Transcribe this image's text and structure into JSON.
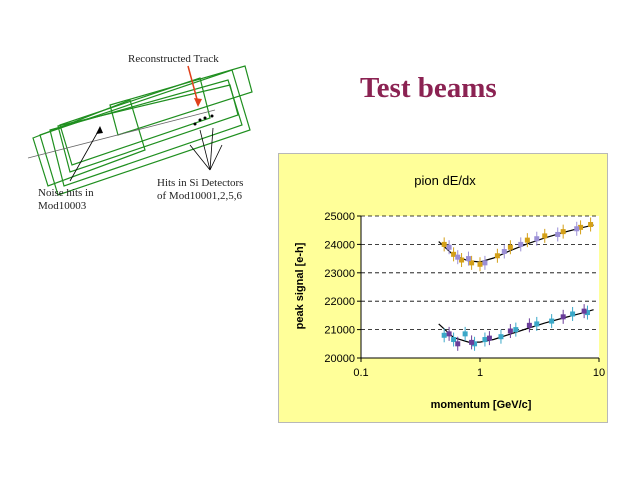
{
  "slide": {
    "title": "Test beams"
  },
  "diagram": {
    "label_reconstructed": "Reconstructed Track",
    "label_noise_1": "Noise hits in",
    "label_noise_2": "Mod10003",
    "label_hits_1": "Hits in Si Detectors",
    "label_hits_2": "of Mod10001,2,5,6",
    "colors": {
      "modules": "#1f8f1f",
      "track": "#e0401a",
      "text": "#222222"
    }
  },
  "chart_data": {
    "type": "scatter",
    "title": "pion dE/dx",
    "xlabel": "momentum [GeV/c]",
    "ylabel": "peak signal [e-h]",
    "xscale": "log",
    "xlim": [
      0.1,
      10
    ],
    "ylim": [
      20000,
      25000
    ],
    "xticks": [
      "0.1",
      "1",
      "10"
    ],
    "yticks": [
      "20000",
      "21000",
      "22000",
      "23000",
      "24000",
      "25000"
    ],
    "grid": "horizontal dashed",
    "background": "#ffff99",
    "series": [
      {
        "color": "#d4a017",
        "points": [
          [
            0.5,
            24000
          ],
          [
            0.6,
            23650
          ],
          [
            0.7,
            23450
          ],
          [
            0.85,
            23350
          ],
          [
            1.0,
            23300
          ],
          [
            1.4,
            23600
          ],
          [
            1.8,
            23900
          ],
          [
            2.5,
            24150
          ],
          [
            3.5,
            24300
          ],
          [
            5.0,
            24450
          ],
          [
            7.0,
            24600
          ],
          [
            8.5,
            24700
          ]
        ]
      },
      {
        "color": "#9b8fd6",
        "points": [
          [
            0.55,
            23900
          ],
          [
            0.65,
            23550
          ],
          [
            0.8,
            23500
          ],
          [
            1.1,
            23350
          ],
          [
            1.6,
            23750
          ],
          [
            2.2,
            24000
          ],
          [
            3.0,
            24200
          ],
          [
            4.5,
            24350
          ],
          [
            6.5,
            24550
          ]
        ]
      },
      {
        "color": "#3aa8c8",
        "points": [
          [
            0.5,
            20800
          ],
          [
            0.6,
            20650
          ],
          [
            0.75,
            20850
          ],
          [
            0.9,
            20500
          ],
          [
            1.1,
            20650
          ],
          [
            1.5,
            20750
          ],
          [
            2.0,
            21000
          ],
          [
            3.0,
            21200
          ],
          [
            4.0,
            21300
          ],
          [
            6.0,
            21550
          ],
          [
            8.0,
            21600
          ]
        ]
      },
      {
        "color": "#6a3d9a",
        "points": [
          [
            0.55,
            20850
          ],
          [
            0.65,
            20500
          ],
          [
            0.85,
            20550
          ],
          [
            1.2,
            20700
          ],
          [
            1.8,
            20950
          ],
          [
            2.6,
            21150
          ],
          [
            5.0,
            21450
          ],
          [
            7.5,
            21650
          ]
        ]
      }
    ],
    "fits": [
      {
        "color": "#000000",
        "points": [
          [
            0.45,
            24100
          ],
          [
            0.6,
            23620
          ],
          [
            0.8,
            23420
          ],
          [
            1.0,
            23380
          ],
          [
            1.3,
            23520
          ],
          [
            1.8,
            23780
          ],
          [
            2.5,
            24020
          ],
          [
            3.5,
            24230
          ],
          [
            5.0,
            24420
          ],
          [
            7.0,
            24580
          ],
          [
            9.0,
            24680
          ]
        ]
      },
      {
        "color": "#000000",
        "points": [
          [
            0.45,
            21200
          ],
          [
            0.6,
            20720
          ],
          [
            0.8,
            20560
          ],
          [
            1.0,
            20560
          ],
          [
            1.3,
            20650
          ],
          [
            1.8,
            20840
          ],
          [
            2.5,
            21040
          ],
          [
            3.5,
            21230
          ],
          [
            5.0,
            21410
          ],
          [
            7.0,
            21570
          ],
          [
            9.0,
            21700
          ]
        ]
      }
    ]
  }
}
